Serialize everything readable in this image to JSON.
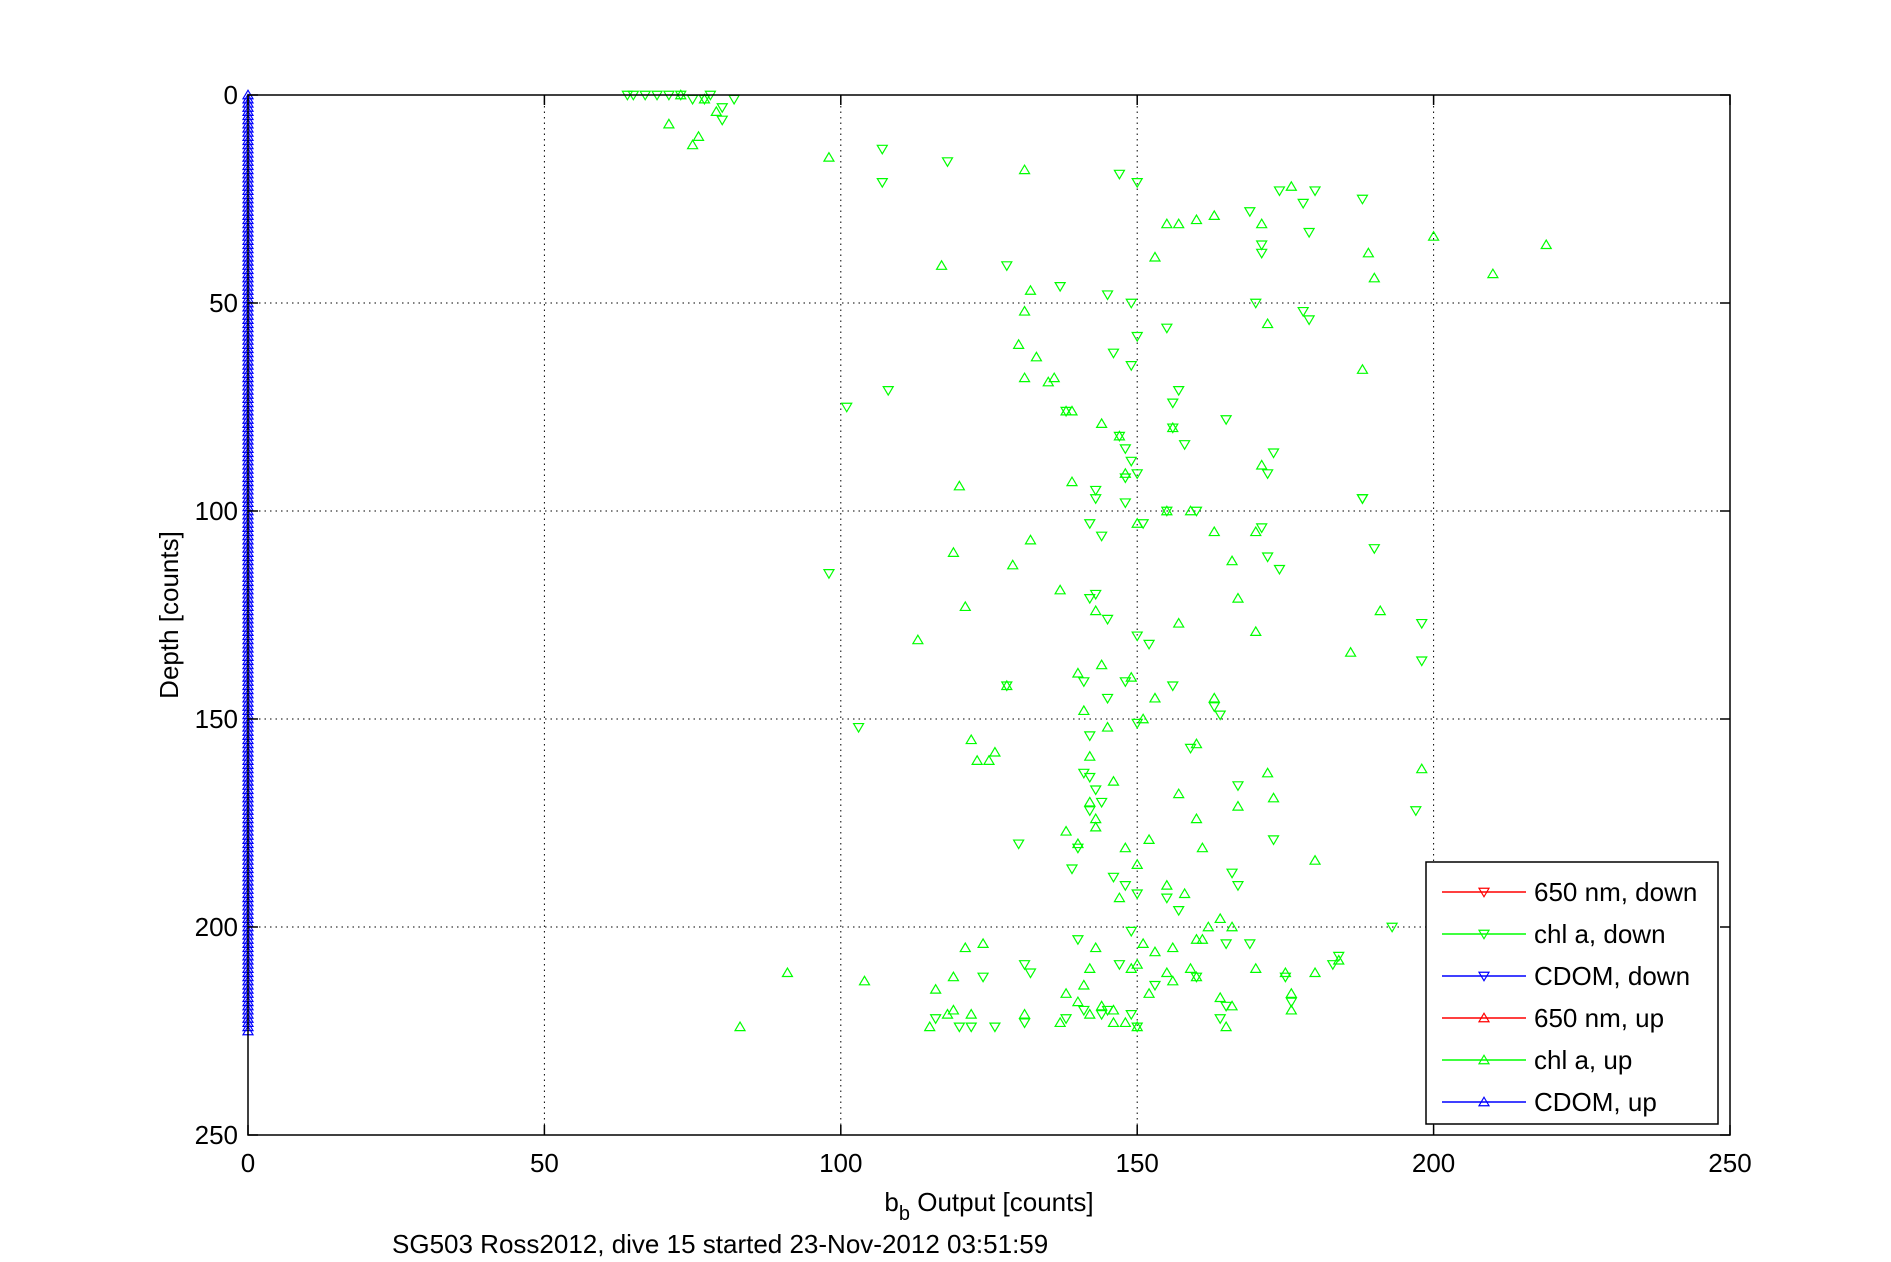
{
  "chart_data": {
    "type": "scatter",
    "title": "",
    "xlabel": "b",
    "xlabel_subscript": "b",
    "xlabel_suffix": " Output [counts]",
    "ylabel": "Depth [counts]",
    "caption": "SG503 Ross2012, dive 15 started 23-Nov-2012 03:51:59",
    "xlim": [
      0,
      250
    ],
    "ylim": [
      0,
      250
    ],
    "y_reversed": true,
    "grid": true,
    "grid_style": "dotted",
    "legend_position": "bottom-right",
    "x_ticks": [
      0,
      50,
      100,
      150,
      200,
      250
    ],
    "y_ticks": [
      0,
      50,
      100,
      150,
      200,
      250
    ],
    "series": [
      {
        "name": "650 nm, down",
        "color": "#ff0000",
        "marker": "triangle-down",
        "points": []
      },
      {
        "name": "chl a, down",
        "color": "#00ff00",
        "marker": "triangle-down",
        "points": [
          [
            64,
            0
          ],
          [
            65,
            0
          ],
          [
            67,
            0
          ],
          [
            69,
            0
          ],
          [
            71,
            0
          ],
          [
            73,
            0
          ],
          [
            75,
            1
          ],
          [
            77,
            1
          ],
          [
            78,
            0
          ],
          [
            80,
            3
          ],
          [
            82,
            1
          ],
          [
            80,
            6
          ],
          [
            107,
            13
          ],
          [
            107,
            21
          ],
          [
            118,
            16
          ],
          [
            147,
            19
          ],
          [
            150,
            21
          ],
          [
            128,
            41
          ],
          [
            137,
            46
          ],
          [
            145,
            48
          ],
          [
            149,
            50
          ],
          [
            170,
            50
          ],
          [
            178,
            52
          ],
          [
            179,
            54
          ],
          [
            150,
            58
          ],
          [
            155,
            56
          ],
          [
            146,
            62
          ],
          [
            149,
            65
          ],
          [
            169,
            28
          ],
          [
            171,
            36
          ],
          [
            171,
            38
          ],
          [
            174,
            23
          ],
          [
            178,
            26
          ],
          [
            180,
            23
          ],
          [
            188,
            25
          ],
          [
            179,
            33
          ],
          [
            108,
            71
          ],
          [
            101,
            75
          ],
          [
            138,
            76
          ],
          [
            156,
            74
          ],
          [
            157,
            71
          ],
          [
            165,
            78
          ],
          [
            173,
            86
          ],
          [
            172,
            91
          ],
          [
            156,
            80
          ],
          [
            158,
            84
          ],
          [
            147,
            82
          ],
          [
            148,
            85
          ],
          [
            149,
            88
          ],
          [
            150,
            91
          ],
          [
            148,
            92
          ],
          [
            143,
            95
          ],
          [
            143,
            97
          ],
          [
            142,
            103
          ],
          [
            144,
            106
          ],
          [
            148,
            98
          ],
          [
            151,
            103
          ],
          [
            155,
            100
          ],
          [
            160,
            100
          ],
          [
            171,
            104
          ],
          [
            172,
            111
          ],
          [
            174,
            114
          ],
          [
            188,
            97
          ],
          [
            190,
            109
          ],
          [
            198,
            127
          ],
          [
            198,
            136
          ],
          [
            98,
            115
          ],
          [
            103,
            152
          ],
          [
            142,
            121
          ],
          [
            143,
            120
          ],
          [
            145,
            126
          ],
          [
            150,
            130
          ],
          [
            152,
            132
          ],
          [
            148,
            141
          ],
          [
            141,
            141
          ],
          [
            145,
            145
          ],
          [
            156,
            142
          ],
          [
            163,
            147
          ],
          [
            164,
            149
          ],
          [
            150,
            151
          ],
          [
            142,
            154
          ],
          [
            141,
            163
          ],
          [
            142,
            164
          ],
          [
            143,
            167
          ],
          [
            144,
            170
          ],
          [
            142,
            172
          ],
          [
            140,
            181
          ],
          [
            139,
            186
          ],
          [
            146,
            188
          ],
          [
            159,
            157
          ],
          [
            167,
            166
          ],
          [
            166,
            187
          ],
          [
            167,
            190
          ],
          [
            148,
            190
          ],
          [
            150,
            192
          ],
          [
            173,
            179
          ],
          [
            157,
            196
          ],
          [
            155,
            193
          ],
          [
            149,
            201
          ],
          [
            165,
            204
          ],
          [
            169,
            204
          ],
          [
            140,
            203
          ],
          [
            188,
            97
          ],
          [
            193,
            200
          ],
          [
            197,
            172
          ],
          [
            184,
            207
          ],
          [
            183,
            209
          ],
          [
            176,
            218
          ],
          [
            175,
            212
          ],
          [
            124,
            212
          ],
          [
            116,
            222
          ],
          [
            120,
            224
          ],
          [
            131,
            209
          ],
          [
            132,
            211
          ],
          [
            126,
            224
          ],
          [
            138,
            222
          ],
          [
            141,
            220
          ],
          [
            145,
            220
          ],
          [
            144,
            221
          ],
          [
            149,
            221
          ],
          [
            150,
            224
          ],
          [
            131,
            223
          ],
          [
            122,
            224
          ],
          [
            130,
            180
          ],
          [
            128,
            142
          ],
          [
            147,
            209
          ],
          [
            153,
            214
          ],
          [
            160,
            212
          ],
          [
            165,
            219
          ],
          [
            164,
            222
          ]
        ]
      },
      {
        "name": "CDOM, down",
        "color": "#0000ff",
        "marker": "triangle-down",
        "points": []
      },
      {
        "name": "650 nm, up",
        "color": "#ff0000",
        "marker": "triangle-up",
        "points": []
      },
      {
        "name": "chl a, up",
        "color": "#00ff00",
        "marker": "triangle-up",
        "points": [
          [
            71,
            7
          ],
          [
            73,
            0
          ],
          [
            76,
            10
          ],
          [
            75,
            12
          ],
          [
            77,
            1
          ],
          [
            79,
            4
          ],
          [
            98,
            15
          ],
          [
            131,
            18
          ],
          [
            176,
            22
          ],
          [
            163,
            29
          ],
          [
            160,
            30
          ],
          [
            157,
            31
          ],
          [
            155,
            31
          ],
          [
            153,
            39
          ],
          [
            171,
            31
          ],
          [
            200,
            34
          ],
          [
            219,
            36
          ],
          [
            189,
            38
          ],
          [
            190,
            44
          ],
          [
            210,
            43
          ],
          [
            117,
            41
          ],
          [
            132,
            47
          ],
          [
            131,
            52
          ],
          [
            130,
            60
          ],
          [
            131,
            68
          ],
          [
            133,
            63
          ],
          [
            135,
            69
          ],
          [
            136,
            68
          ],
          [
            139,
            76
          ],
          [
            144,
            79
          ],
          [
            147,
            82
          ],
          [
            156,
            80
          ],
          [
            171,
            89
          ],
          [
            172,
            55
          ],
          [
            188,
            66
          ],
          [
            139,
            93
          ],
          [
            138,
            76
          ],
          [
            148,
            91
          ],
          [
            150,
            103
          ],
          [
            155,
            100
          ],
          [
            159,
            100
          ],
          [
            166,
            112
          ],
          [
            170,
            105
          ],
          [
            167,
            121
          ],
          [
            120,
            94
          ],
          [
            119,
            110
          ],
          [
            121,
            123
          ],
          [
            113,
            131
          ],
          [
            129,
            113
          ],
          [
            132,
            107
          ],
          [
            137,
            119
          ],
          [
            140,
            139
          ],
          [
            141,
            148
          ],
          [
            143,
            124
          ],
          [
            144,
            137
          ],
          [
            149,
            140
          ],
          [
            151,
            150
          ],
          [
            153,
            145
          ],
          [
            157,
            127
          ],
          [
            163,
            105
          ],
          [
            163,
            145
          ],
          [
            170,
            129
          ],
          [
            191,
            124
          ],
          [
            186,
            134
          ],
          [
            198,
            162
          ],
          [
            128,
            142
          ],
          [
            122,
            155
          ],
          [
            123,
            160
          ],
          [
            125,
            160
          ],
          [
            126,
            158
          ],
          [
            142,
            159
          ],
          [
            146,
            165
          ],
          [
            142,
            170
          ],
          [
            138,
            177
          ],
          [
            140,
            180
          ],
          [
            148,
            181
          ],
          [
            143,
            174
          ],
          [
            143,
            176
          ],
          [
            152,
            179
          ],
          [
            160,
            174
          ],
          [
            161,
            181
          ],
          [
            157,
            168
          ],
          [
            167,
            171
          ],
          [
            173,
            169
          ],
          [
            180,
            184
          ],
          [
            172,
            163
          ],
          [
            160,
            156
          ],
          [
            145,
            152
          ],
          [
            147,
            193
          ],
          [
            150,
            185
          ],
          [
            155,
            190
          ],
          [
            158,
            192
          ],
          [
            161,
            203
          ],
          [
            162,
            200
          ],
          [
            166,
            200
          ],
          [
            156,
            205
          ],
          [
            160,
            203
          ],
          [
            164,
            198
          ],
          [
            170,
            210
          ],
          [
            175,
            211
          ],
          [
            176,
            216
          ],
          [
            180,
            211
          ],
          [
            184,
            208
          ],
          [
            176,
            220
          ],
          [
            142,
            210
          ],
          [
            138,
            216
          ],
          [
            140,
            218
          ],
          [
            141,
            214
          ],
          [
            144,
            219
          ],
          [
            146,
            220
          ],
          [
            148,
            223
          ],
          [
            152,
            216
          ],
          [
            155,
            211
          ],
          [
            156,
            213
          ],
          [
            150,
            209
          ],
          [
            149,
            210
          ],
          [
            143,
            205
          ],
          [
            121,
            205
          ],
          [
            124,
            204
          ],
          [
            119,
            212
          ],
          [
            116,
            215
          ],
          [
            118,
            221
          ],
          [
            119,
            220
          ],
          [
            122,
            221
          ],
          [
            115,
            224
          ],
          [
            131,
            221
          ],
          [
            137,
            223
          ],
          [
            142,
            221
          ],
          [
            146,
            223
          ],
          [
            150,
            224
          ],
          [
            159,
            210
          ],
          [
            164,
            217
          ],
          [
            165,
            224
          ],
          [
            166,
            219
          ],
          [
            160,
            212
          ],
          [
            91,
            211
          ],
          [
            83,
            224
          ],
          [
            104,
            213
          ],
          [
            151,
            204
          ],
          [
            153,
            206
          ]
        ]
      },
      {
        "name": "CDOM, up",
        "color": "#0000ff",
        "marker": "triangle-up",
        "points": [
          [
            0,
            0
          ],
          [
            0,
            225
          ]
        ],
        "dense_vertical": {
          "x": 0,
          "y_from": 0,
          "y_to": 225,
          "step": 1
        }
      }
    ]
  }
}
